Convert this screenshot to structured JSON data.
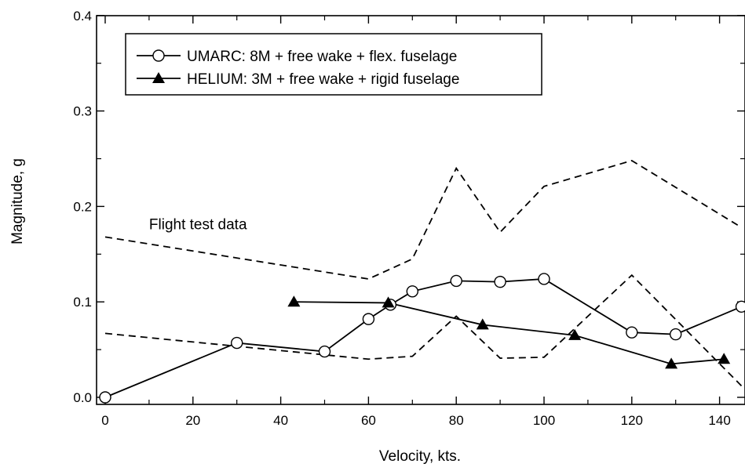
{
  "chart_data": {
    "type": "line",
    "xlabel": "Velocity, kts.",
    "ylabel": "Magnitude, g",
    "xlim": [
      -2,
      145
    ],
    "ylim": [
      -0.007,
      0.4
    ],
    "x_ticks": [
      0,
      20,
      40,
      60,
      80,
      100,
      120,
      140
    ],
    "x_tick_labels": [
      "0",
      "20",
      "40",
      "60",
      "80",
      "100",
      "120",
      "140"
    ],
    "y_ticks": [
      0.0,
      0.1,
      0.2,
      0.3,
      0.4
    ],
    "y_tick_labels": [
      "0.0",
      "0.1",
      "0.2",
      "0.3",
      "0.4"
    ],
    "grid": false,
    "legend_position": "top-left",
    "series": [
      {
        "name": "UMARC: 8M + free wake + flex. fuselage",
        "marker": "open-circle",
        "line": "solid",
        "color": "#000000",
        "x": [
          0,
          30,
          50,
          60,
          65,
          70,
          80,
          90,
          100,
          120,
          130,
          145
        ],
        "y": [
          0.0,
          0.057,
          0.048,
          0.082,
          0.097,
          0.111,
          0.122,
          0.121,
          0.124,
          0.068,
          0.066,
          0.095
        ]
      },
      {
        "name": "HELIUM: 3M + free wake + rigid fuselage",
        "marker": "filled-triangle",
        "line": "solid",
        "color": "#000000",
        "x": [
          43,
          64.5,
          86,
          107,
          129,
          141
        ],
        "y": [
          0.1,
          0.099,
          0.076,
          0.065,
          0.035,
          0.04
        ]
      },
      {
        "name": "",
        "marker": "none",
        "line": "dashed",
        "color": "#000000",
        "x": [
          0,
          60,
          70,
          80,
          90,
          100,
          120,
          145
        ],
        "y": [
          0.168,
          0.124,
          0.145,
          0.24,
          0.173,
          0.221,
          0.248,
          0.178
        ]
      },
      {
        "name": "",
        "marker": "none",
        "line": "dashed",
        "color": "#000000",
        "x": [
          0,
          60,
          70,
          80,
          90,
          100,
          120,
          145
        ],
        "y": [
          0.067,
          0.04,
          0.043,
          0.085,
          0.041,
          0.042,
          0.128,
          0.012
        ]
      }
    ],
    "annotations": [
      {
        "text": "Flight test data",
        "x": 10,
        "y": 0.176
      }
    ]
  }
}
